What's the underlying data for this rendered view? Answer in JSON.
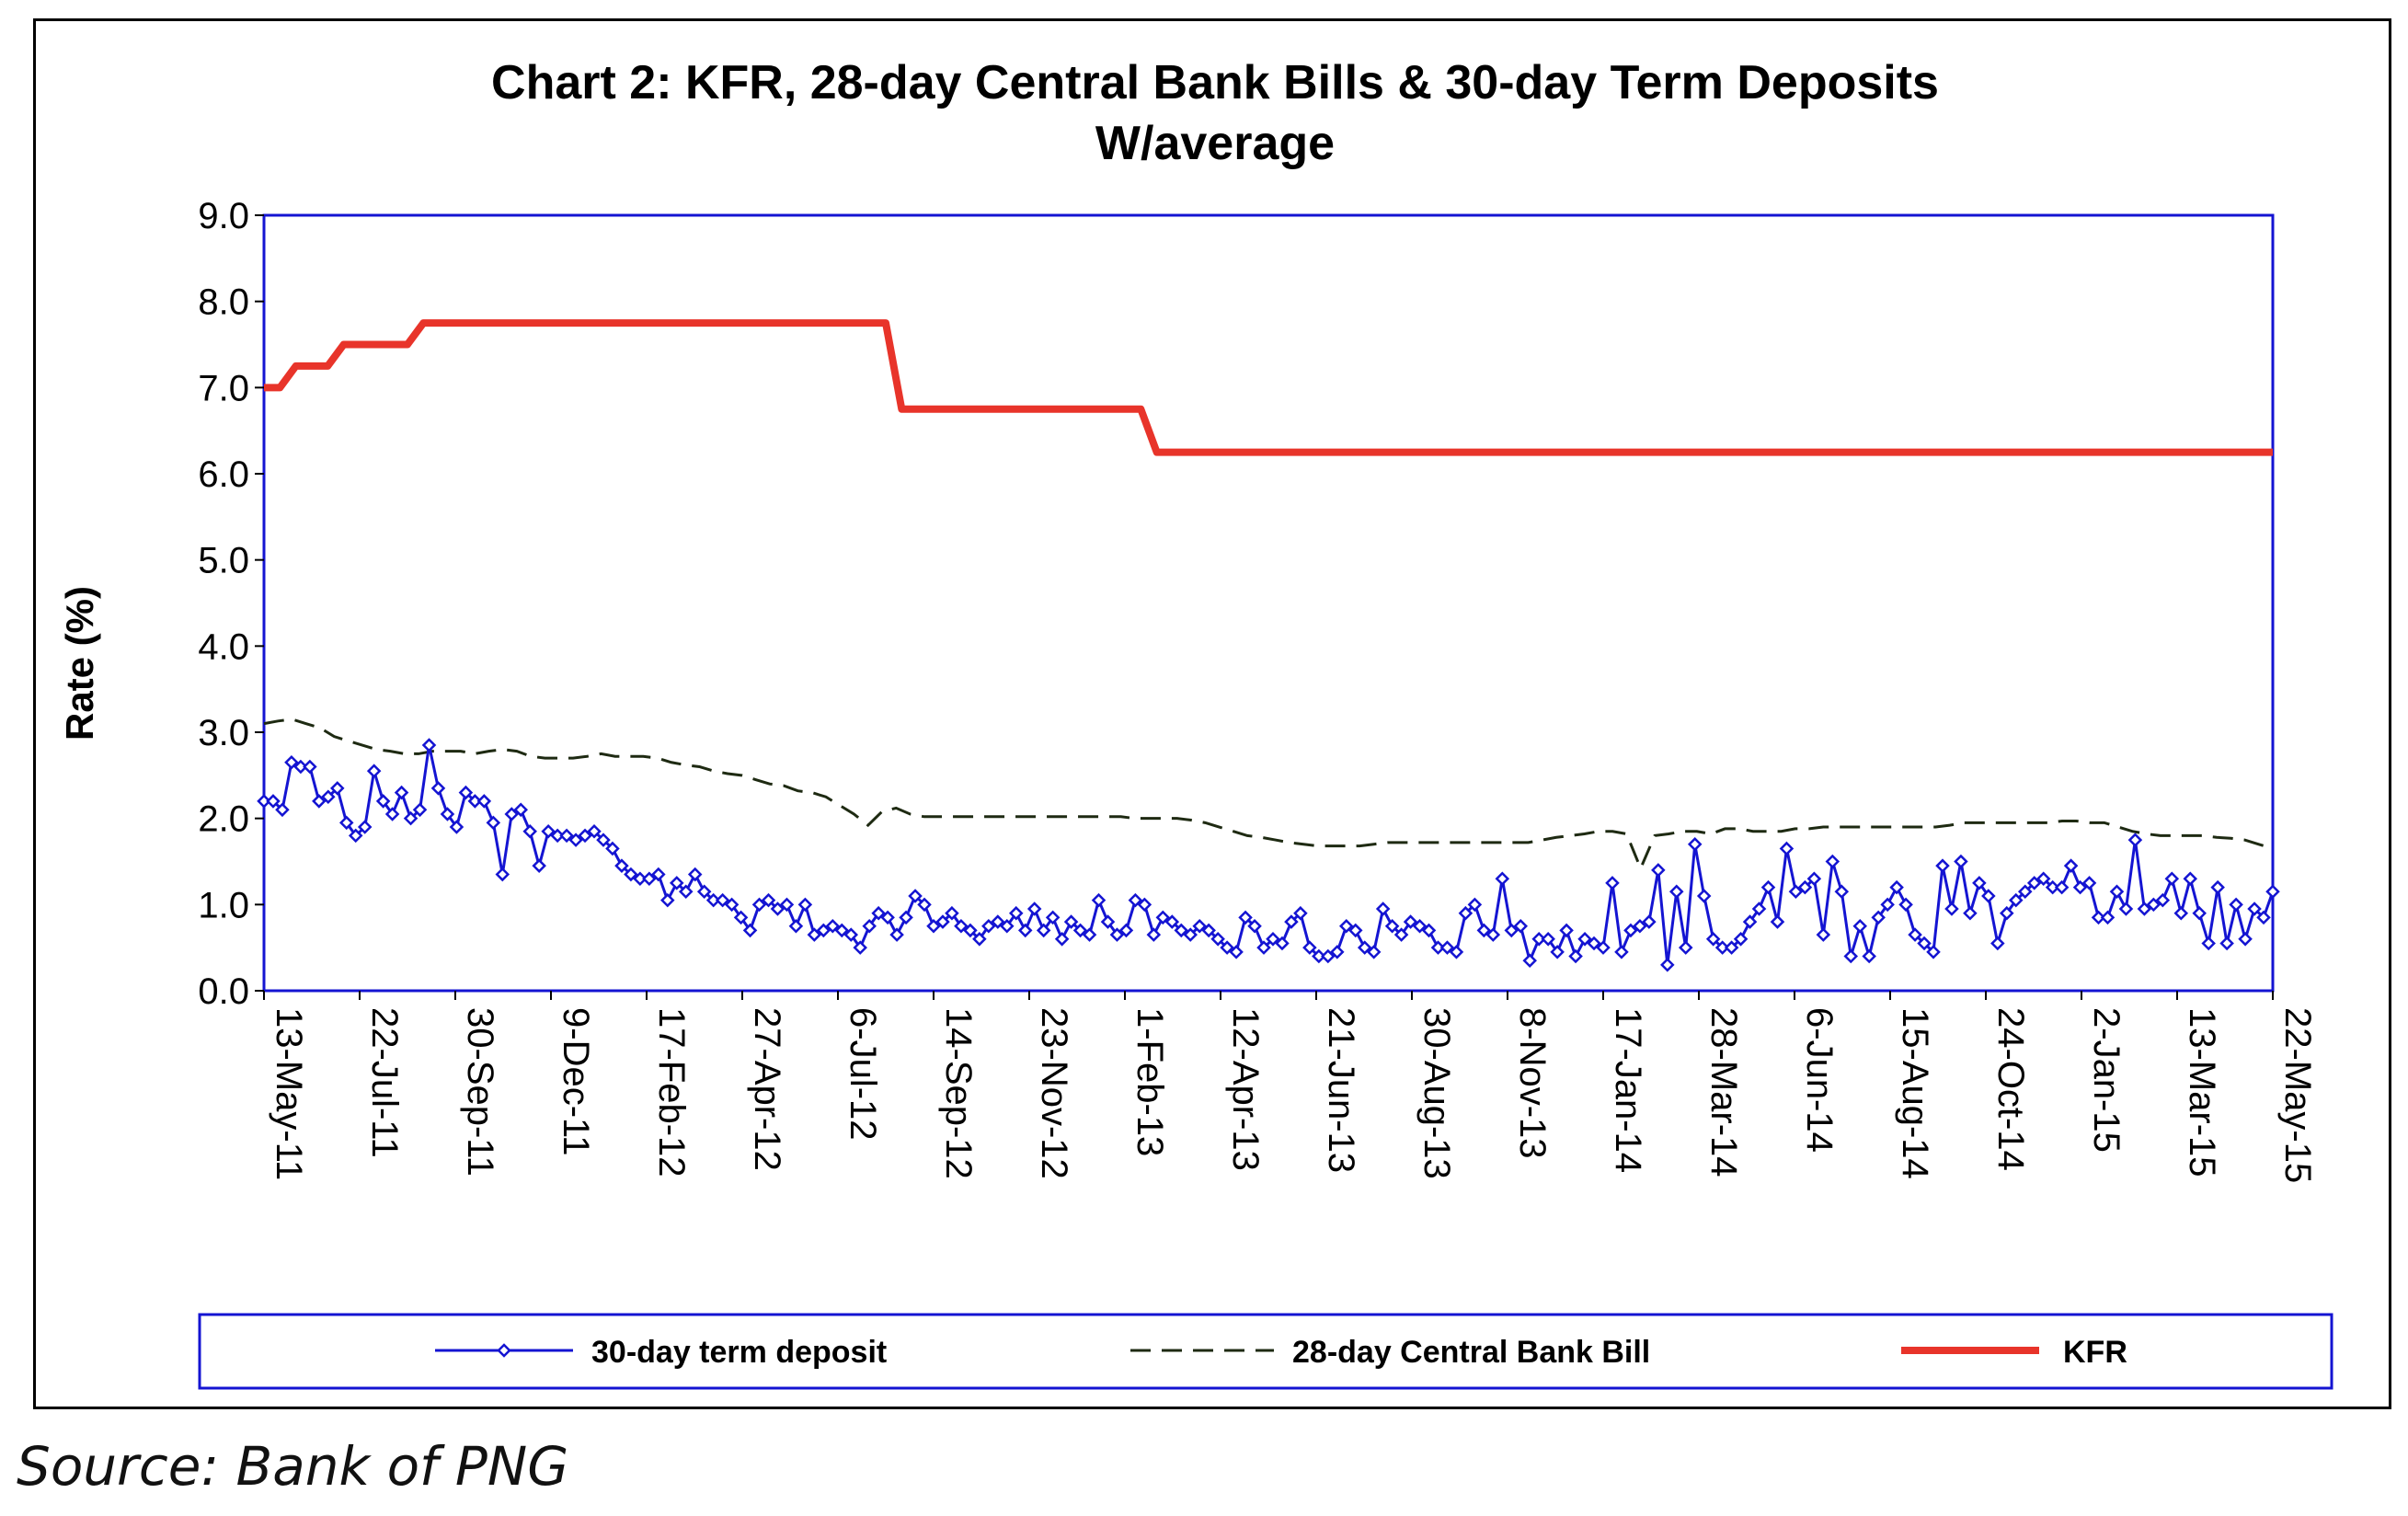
{
  "source_note": "Source: Bank of PNG",
  "chart_data": {
    "type": "line",
    "title": "Chart 2: KFR, 28-day Central Bank Bills & 30-day Term Deposits",
    "subtitle": "W/average",
    "ylabel": "Rate  (%)",
    "xlabel": "",
    "ylim": [
      0,
      9
    ],
    "yticks": [
      "0.0",
      "1.0",
      "2.0",
      "3.0",
      "4.0",
      "5.0",
      "6.0",
      "7.0",
      "8.0",
      "9.0"
    ],
    "x_tick_labels": [
      "13-May-11",
      "22-Jul-11",
      "30-Sep-11",
      "9-Dec-11",
      "17-Feb-12",
      "27-Apr-12",
      "6-Jul-12",
      "14-Sep-12",
      "23-Nov-12",
      "1-Feb-13",
      "12-Apr-13",
      "21-Jun-13",
      "30-Aug-13",
      "8-Nov-13",
      "17-Jan-14",
      "28-Mar-14",
      "6-Jun-14",
      "15-Aug-14",
      "24-Oct-14",
      "2-Jan-15",
      "13-Mar-15",
      "22-May-15"
    ],
    "grid": false,
    "legend_position": "bottom",
    "colors": {
      "term_deposit": "#1414d2",
      "cbb": "#1e2a12",
      "kfr": "#e8342a",
      "plot_border": "#1414d2",
      "legend_border": "#1414d2"
    },
    "series": [
      {
        "name": "30-day term deposit",
        "style": "line-with-diamond-markers",
        "values": [
          2.2,
          2.2,
          2.1,
          2.65,
          2.6,
          2.6,
          2.2,
          2.25,
          2.35,
          1.95,
          1.8,
          1.9,
          2.55,
          2.2,
          2.05,
          2.3,
          2.0,
          2.1,
          2.85,
          2.35,
          2.05,
          1.9,
          2.3,
          2.2,
          2.2,
          1.95,
          1.35,
          2.05,
          2.1,
          1.85,
          1.45,
          1.85,
          1.8,
          1.8,
          1.75,
          1.8,
          1.85,
          1.75,
          1.65,
          1.45,
          1.35,
          1.3,
          1.3,
          1.35,
          1.05,
          1.25,
          1.15,
          1.35,
          1.15,
          1.05,
          1.05,
          1.0,
          0.85,
          0.7,
          1.0,
          1.05,
          0.95,
          1.0,
          0.75,
          1.0,
          0.65,
          0.7,
          0.75,
          0.7,
          0.65,
          0.5,
          0.75,
          0.9,
          0.85,
          0.65,
          0.85,
          1.1,
          1.0,
          0.75,
          0.8,
          0.9,
          0.75,
          0.7,
          0.6,
          0.75,
          0.8,
          0.75,
          0.9,
          0.7,
          0.95,
          0.7,
          0.85,
          0.6,
          0.8,
          0.7,
          0.65,
          1.05,
          0.8,
          0.65,
          0.7,
          1.05,
          1.0,
          0.65,
          0.85,
          0.8,
          0.7,
          0.65,
          0.75,
          0.7,
          0.6,
          0.5,
          0.45,
          0.85,
          0.75,
          0.5,
          0.6,
          0.55,
          0.8,
          0.9,
          0.5,
          0.4,
          0.4,
          0.45,
          0.75,
          0.7,
          0.5,
          0.45,
          0.95,
          0.75,
          0.65,
          0.8,
          0.75,
          0.7,
          0.5,
          0.5,
          0.45,
          0.9,
          1.0,
          0.7,
          0.65,
          1.3,
          0.7,
          0.75,
          0.35,
          0.6,
          0.6,
          0.45,
          0.7,
          0.4,
          0.6,
          0.55,
          0.5,
          1.25,
          0.45,
          0.7,
          0.75,
          0.8,
          1.4,
          0.3,
          1.15,
          0.5,
          1.7,
          1.1,
          0.6,
          0.5,
          0.5,
          0.6,
          0.8,
          0.95,
          1.2,
          0.8,
          1.65,
          1.15,
          1.2,
          1.3,
          0.65,
          1.5,
          1.15,
          0.4,
          0.75,
          0.4,
          0.85,
          1.0,
          1.2,
          1.0,
          0.65,
          0.55,
          0.45,
          1.45,
          0.95,
          1.5,
          0.9,
          1.25,
          1.1,
          0.55,
          0.9,
          1.05,
          1.15,
          1.25,
          1.3,
          1.2,
          1.2,
          1.45,
          1.2,
          1.25,
          0.85,
          0.85,
          1.15,
          0.95,
          1.75,
          0.95,
          1.0,
          1.05,
          1.3,
          0.9,
          1.3,
          0.9,
          0.55,
          1.2,
          0.55,
          1.0,
          0.6,
          0.95,
          0.85,
          1.15
        ]
      },
      {
        "name": "28-day Central Bank Bill",
        "style": "dashed-line",
        "values": [
          3.1,
          3.13,
          3.15,
          3.1,
          3.05,
          2.95,
          2.9,
          2.85,
          2.8,
          2.78,
          2.75,
          2.75,
          2.78,
          2.78,
          2.78,
          2.75,
          2.78,
          2.8,
          2.78,
          2.72,
          2.7,
          2.7,
          2.7,
          2.72,
          2.75,
          2.72,
          2.72,
          2.72,
          2.7,
          2.65,
          2.62,
          2.6,
          2.55,
          2.52,
          2.5,
          2.45,
          2.4,
          2.38,
          2.32,
          2.3,
          2.25,
          2.15,
          2.05,
          1.92,
          2.08,
          2.12,
          2.05,
          2.02,
          2.02,
          2.02,
          2.02,
          2.02,
          2.02,
          2.02,
          2.02,
          2.02,
          2.02,
          2.02,
          2.02,
          2.02,
          2.02,
          2.02,
          2.0,
          2.0,
          2.0,
          2.0,
          1.98,
          1.95,
          1.9,
          1.85,
          1.8,
          1.78,
          1.75,
          1.72,
          1.7,
          1.68,
          1.68,
          1.68,
          1.68,
          1.7,
          1.72,
          1.72,
          1.72,
          1.72,
          1.72,
          1.72,
          1.72,
          1.72,
          1.72,
          1.72,
          1.72,
          1.75,
          1.78,
          1.8,
          1.82,
          1.85,
          1.85,
          1.82,
          1.42,
          1.8,
          1.82,
          1.85,
          1.85,
          1.82,
          1.88,
          1.88,
          1.85,
          1.85,
          1.85,
          1.88,
          1.88,
          1.9,
          1.9,
          1.9,
          1.9,
          1.9,
          1.9,
          1.9,
          1.9,
          1.9,
          1.92,
          1.95,
          1.95,
          1.95,
          1.95,
          1.95,
          1.95,
          1.95,
          1.97,
          1.97,
          1.95,
          1.95,
          1.9,
          1.85,
          1.82,
          1.8,
          1.8,
          1.8,
          1.8,
          1.78,
          1.77,
          1.75,
          1.7,
          1.65
        ]
      },
      {
        "name": "KFR",
        "style": "thick-line",
        "values": [
          7.0,
          7.0,
          7.25,
          7.25,
          7.25,
          7.5,
          7.5,
          7.5,
          7.5,
          7.5,
          7.75,
          7.75,
          7.75,
          7.75,
          7.75,
          7.75,
          7.75,
          7.75,
          7.75,
          7.75,
          7.75,
          7.75,
          7.75,
          7.75,
          7.75,
          7.75,
          7.75,
          7.75,
          7.75,
          7.75,
          7.75,
          7.75,
          7.75,
          7.75,
          7.75,
          7.75,
          7.75,
          7.75,
          7.75,
          7.75,
          6.75,
          6.75,
          6.75,
          6.75,
          6.75,
          6.75,
          6.75,
          6.75,
          6.75,
          6.75,
          6.75,
          6.75,
          6.75,
          6.75,
          6.75,
          6.75,
          6.25,
          6.25,
          6.25,
          6.25,
          6.25,
          6.25,
          6.25,
          6.25,
          6.25,
          6.25,
          6.25,
          6.25,
          6.25,
          6.25,
          6.25,
          6.25,
          6.25,
          6.25,
          6.25,
          6.25,
          6.25,
          6.25,
          6.25,
          6.25,
          6.25,
          6.25,
          6.25,
          6.25,
          6.25,
          6.25,
          6.25,
          6.25,
          6.25,
          6.25,
          6.25,
          6.25,
          6.25,
          6.25,
          6.25,
          6.25,
          6.25,
          6.25,
          6.25,
          6.25,
          6.25,
          6.25,
          6.25,
          6.25,
          6.25,
          6.25,
          6.25,
          6.25,
          6.25,
          6.25,
          6.25,
          6.25,
          6.25,
          6.25,
          6.25,
          6.25,
          6.25,
          6.25,
          6.25,
          6.25,
          6.25,
          6.25,
          6.25,
          6.25,
          6.25,
          6.25,
          6.25
        ]
      }
    ]
  }
}
